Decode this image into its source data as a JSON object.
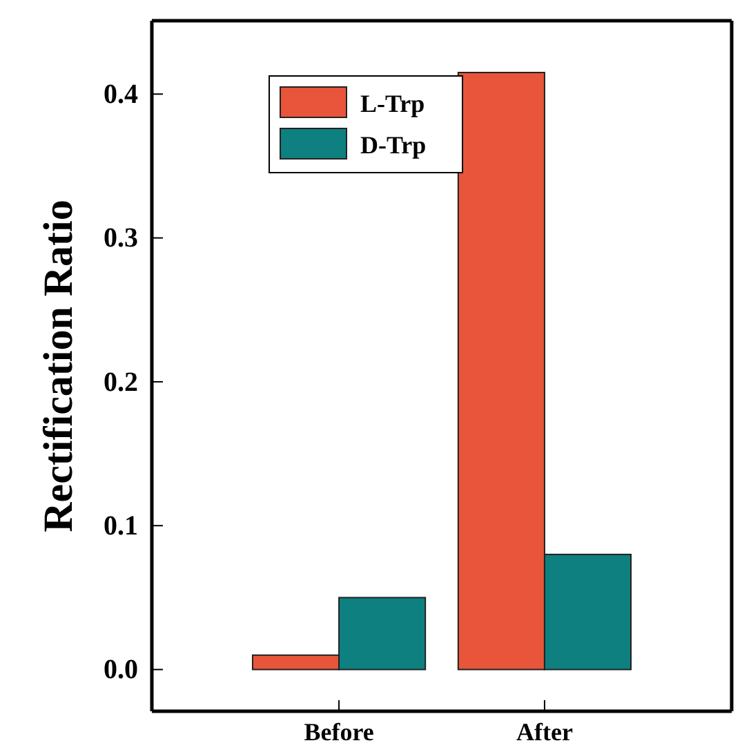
{
  "chart_data": {
    "type": "bar",
    "ylabel": "Rectification Ratio",
    "categories": [
      "Before",
      "After"
    ],
    "series": [
      {
        "name": "L-Trp",
        "color": "#e8553a",
        "values": [
          0.01,
          0.415
        ]
      },
      {
        "name": "D-Trp",
        "color": "#0e8080",
        "values": [
          0.05,
          0.08
        ]
      }
    ],
    "ylim": [
      -0.029,
      0.451
    ],
    "yticks": [
      {
        "value": 0,
        "label": "0.0"
      },
      {
        "value": 0.1,
        "label": "0.1"
      },
      {
        "value": 0.2,
        "label": "0.2"
      },
      {
        "value": 0.3,
        "label": "0.3"
      },
      {
        "value": 0.4,
        "label": "0.4"
      }
    ],
    "legend": "top left"
  }
}
